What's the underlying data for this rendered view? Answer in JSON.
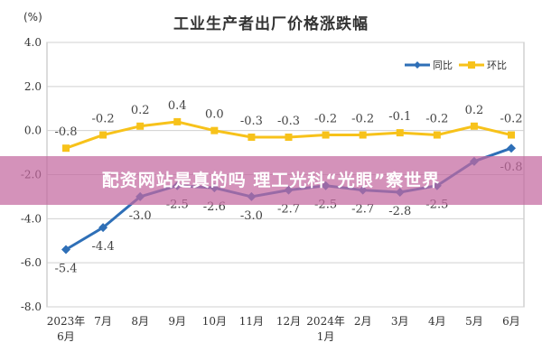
{
  "chart_data": {
    "type": "line",
    "title": "工业生产者出厂价格涨跌幅",
    "unit_label": "(%)",
    "categories": [
      [
        "2023年",
        "6月"
      ],
      [
        "7月"
      ],
      [
        "8月"
      ],
      [
        "9月"
      ],
      [
        "10月"
      ],
      [
        "11月"
      ],
      [
        "12月"
      ],
      [
        "2024年",
        "1月"
      ],
      [
        "2月"
      ],
      [
        "3月"
      ],
      [
        "4月"
      ],
      [
        "5月"
      ],
      [
        "6月"
      ]
    ],
    "ylim": [
      -8.0,
      4.0
    ],
    "yticks": [
      4.0,
      2.0,
      0.0,
      -2.0,
      -4.0,
      -6.0,
      -8.0
    ],
    "ytick_labels": [
      "4.0",
      "2.0",
      "0.0",
      "-2.0",
      "-4.0",
      "-6.0",
      "-8.0"
    ],
    "grid": true,
    "legend_position": "top-right",
    "series": [
      {
        "name": "同比",
        "color": "#2e6fb7",
        "marker": "diamond",
        "values": [
          -5.4,
          -4.4,
          -3.0,
          -2.5,
          -2.6,
          -3.0,
          -2.7,
          -2.5,
          -2.7,
          -2.8,
          -2.5,
          -1.4,
          -0.8
        ],
        "labels": [
          "-5.4",
          "-4.4",
          "-3.0",
          "-2.5",
          "-2.6",
          "-3.0",
          "-2.7",
          "-2.5",
          "-2.7",
          "-2.8",
          "-2.5",
          "",
          "-0.8"
        ]
      },
      {
        "name": "环比",
        "color": "#f7c21a",
        "marker": "square",
        "values": [
          -0.8,
          -0.2,
          0.2,
          0.4,
          0.0,
          -0.3,
          -0.3,
          -0.2,
          -0.2,
          -0.1,
          -0.2,
          0.2,
          -0.2
        ],
        "labels": [
          "-0.8",
          "-0.2",
          "0.2",
          "0.4",
          "0.0",
          "-0.3",
          "-0.3",
          "-0.2",
          "-0.2",
          "-0.1",
          "-0.2",
          "0.2",
          "-0.2"
        ]
      }
    ]
  },
  "banner": {
    "text": "配资网站是真的吗 理工光科“光眼”察世界"
  }
}
